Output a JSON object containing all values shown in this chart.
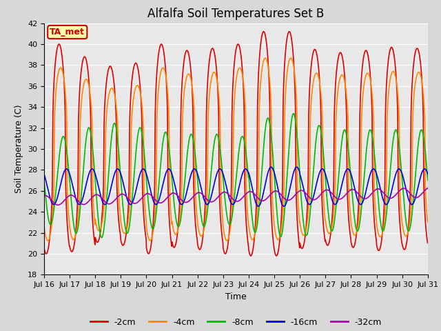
{
  "title": "Alfalfa Soil Temperatures Set B",
  "xlabel": "Time",
  "ylabel": "Soil Temperature (C)",
  "ylim": [
    18,
    42
  ],
  "yticks": [
    18,
    20,
    22,
    24,
    26,
    28,
    30,
    32,
    34,
    36,
    38,
    40,
    42
  ],
  "xtick_labels": [
    "Jul 16",
    "Jul 17",
    "Jul 18",
    "Jul 19",
    "Jul 20",
    "Jul 21",
    "Jul 22",
    "Jul 23",
    "Jul 24",
    "Jul 25",
    "Jul 26",
    "Jul 27",
    "Jul 28",
    "Jul 29",
    "Jul 30",
    "Jul 31"
  ],
  "line_colors": [
    "#dd0000",
    "#ff8800",
    "#00bb00",
    "#0000dd",
    "#aa00aa"
  ],
  "line_labels": [
    "-2cm",
    "-4cm",
    "-8cm",
    "-16cm",
    "-32cm"
  ],
  "outer_bg": "#d8d8d8",
  "plot_bg": "#e8e8e8",
  "grid_color": "#ffffff",
  "annotation_text": "TA_met",
  "annotation_bg": "#ffffaa",
  "annotation_border": "#cc0000",
  "title_fontsize": 12,
  "label_fontsize": 9,
  "tick_fontsize": 8,
  "legend_fontsize": 9,
  "line_width": 1.2
}
